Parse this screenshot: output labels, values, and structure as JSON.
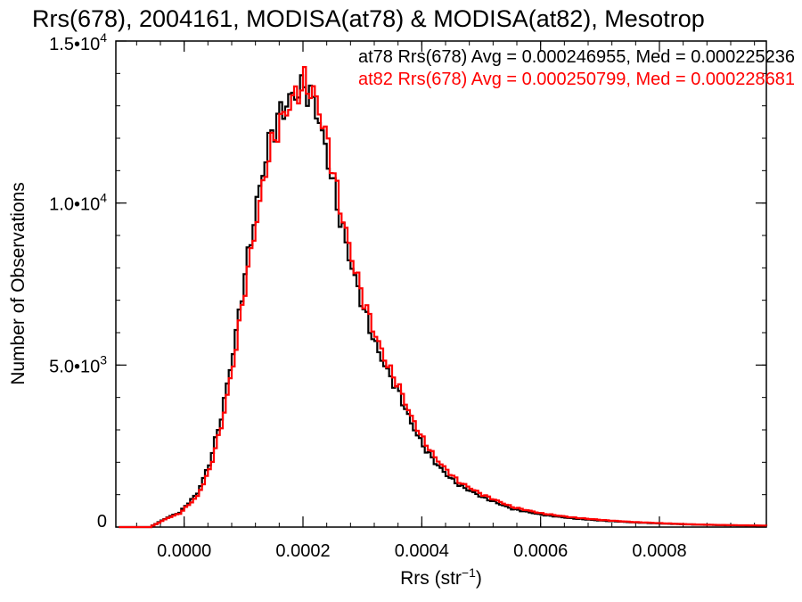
{
  "chart_data": {
    "type": "line",
    "title": "Rrs(678), 2004161, MODISA(at78) & MODISA(at82), Mesotrop",
    "xlabel": "Rrs (str",
    "xlabel_sup": "−1",
    "xlabel_close": ")",
    "ylabel": "Number of Observations",
    "xlim": [
      -0.000115,
      0.00098
    ],
    "ylim": [
      0,
      15000
    ],
    "grid": false,
    "legend_position": "top-right",
    "x_ticks": [
      {
        "value": 0.0,
        "label": "0.0000"
      },
      {
        "value": 0.0002,
        "label": "0.0002"
      },
      {
        "value": 0.0004,
        "label": "0.0004"
      },
      {
        "value": 0.0006,
        "label": "0.0006"
      },
      {
        "value": 0.0008,
        "label": "0.0008"
      }
    ],
    "y_ticks": [
      {
        "value": 0,
        "mant": "0",
        "exp": ""
      },
      {
        "value": 5000,
        "mant": "5.0•10",
        "exp": "3"
      },
      {
        "value": 10000,
        "mant": "1.0•10",
        "exp": "4"
      },
      {
        "value": 15000,
        "mant": "1.5•10",
        "exp": "4"
      }
    ],
    "series": [
      {
        "name": "at78",
        "legend": "at78 Rrs(678) Avg = 0.000246955, Med = 0.000225236",
        "color": "#000000",
        "x": [
          -0.00011,
          -6e-05,
          -5e-05,
          -3e-05,
          -1e-05,
          0.0,
          2e-05,
          4e-05,
          6e-05,
          8e-05,
          0.0001,
          0.00012,
          0.00014,
          0.00016,
          0.00018,
          0.0002,
          0.00021,
          0.00022,
          0.00024,
          0.00026,
          0.00028,
          0.0003,
          0.00032,
          0.00034,
          0.00036,
          0.00038,
          0.0004,
          0.00042,
          0.00044,
          0.00046,
          0.0005,
          0.00055,
          0.0006,
          0.00065,
          0.0007,
          0.00075,
          0.0008,
          0.00085,
          0.0009,
          0.00098
        ],
        "y": [
          0,
          0,
          100,
          300,
          450,
          650,
          1050,
          1950,
          3400,
          5400,
          7800,
          10000,
          11900,
          12800,
          13300,
          13600,
          13300,
          12900,
          11300,
          9500,
          8000,
          6700,
          5600,
          4800,
          4100,
          3200,
          2500,
          2000,
          1600,
          1300,
          920,
          560,
          380,
          270,
          200,
          150,
          110,
          80,
          60,
          40
        ]
      },
      {
        "name": "at82",
        "legend": "at82 Rrs(678) Avg = 0.000250799, Med = 0.000228681",
        "color": "#ff0000",
        "x": [
          -0.00011,
          -6e-05,
          -5e-05,
          -3e-05,
          -1e-05,
          0.0,
          2e-05,
          4e-05,
          6e-05,
          8e-05,
          0.0001,
          0.00012,
          0.00014,
          0.00016,
          0.00018,
          0.0002,
          0.00021,
          0.00022,
          0.00024,
          0.00026,
          0.00028,
          0.0003,
          0.00032,
          0.00034,
          0.00036,
          0.00038,
          0.0004,
          0.00042,
          0.00044,
          0.00046,
          0.0005,
          0.00055,
          0.0006,
          0.00065,
          0.0007,
          0.00075,
          0.0008,
          0.00085,
          0.0009,
          0.00098
        ],
        "y": [
          0,
          0,
          90,
          280,
          420,
          600,
          950,
          1750,
          3100,
          5000,
          7400,
          9500,
          11500,
          12500,
          13200,
          13700,
          13500,
          13200,
          11800,
          9900,
          8300,
          7000,
          5900,
          5000,
          4300,
          3400,
          2700,
          2150,
          1750,
          1400,
          1000,
          620,
          420,
          300,
          220,
          160,
          120,
          85,
          65,
          45
        ]
      }
    ]
  }
}
